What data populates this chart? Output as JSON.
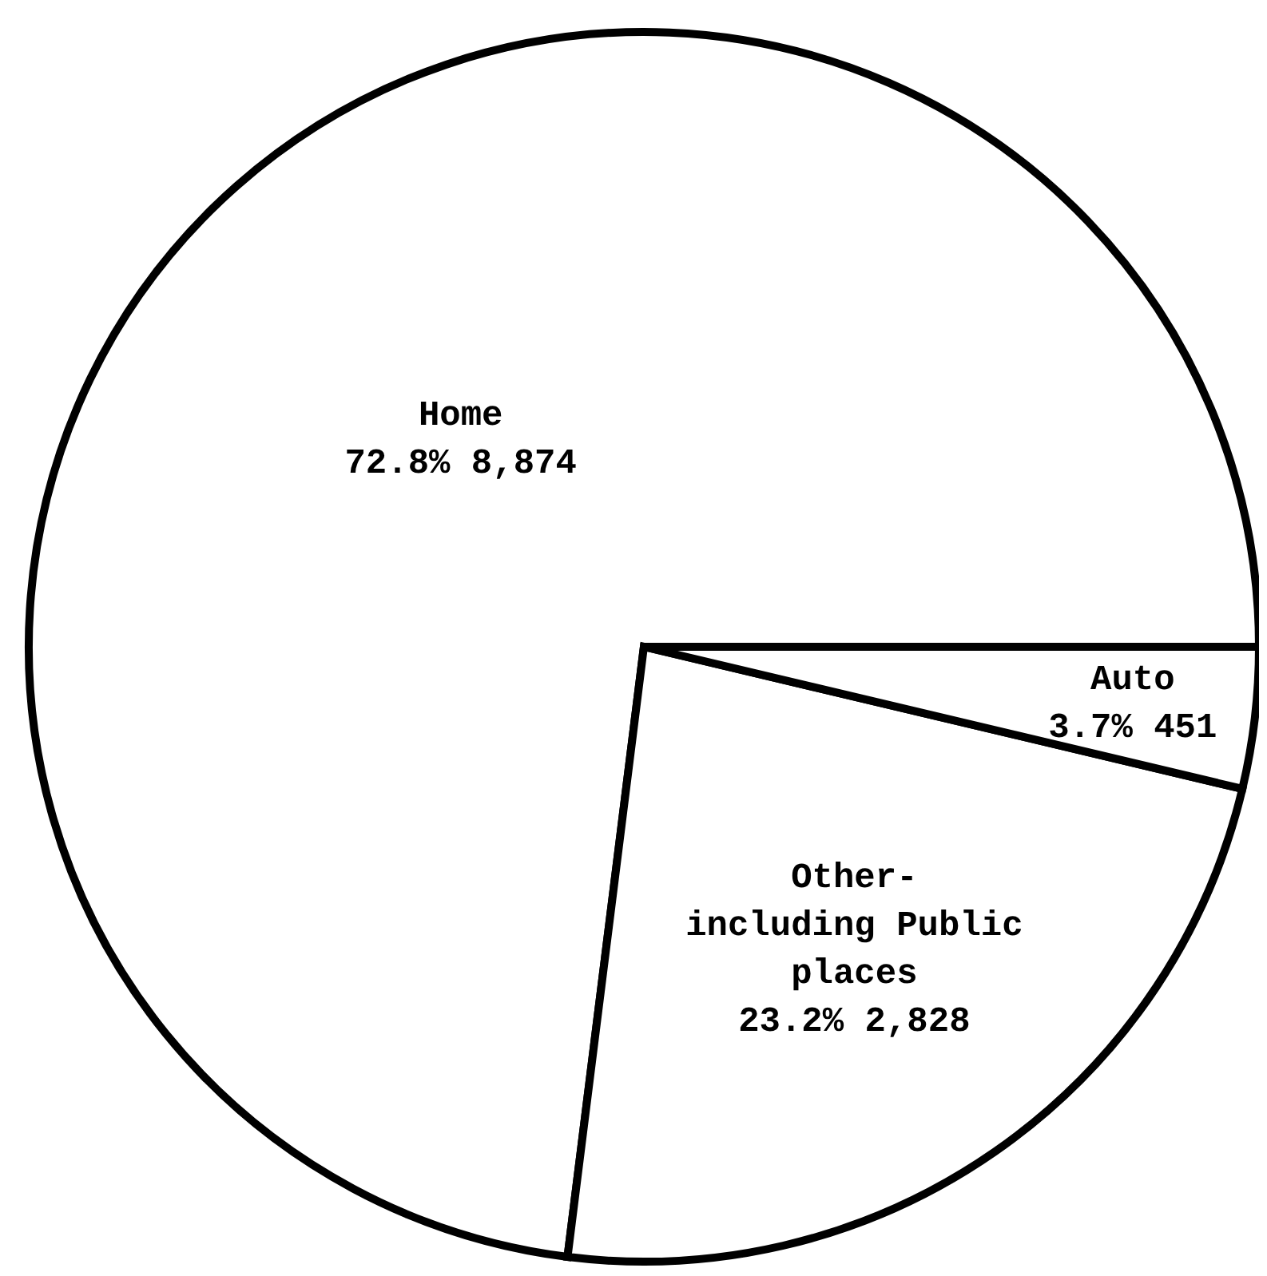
{
  "chart_data": {
    "type": "pie",
    "categories": [
      "Home",
      "Other-including Public places",
      "Auto"
    ],
    "values": [
      72.8,
      23.2,
      3.7
    ],
    "value_labels": [
      "72.8%",
      "23.2%",
      "3.7%"
    ],
    "annotations": [
      "8,874",
      "2,828",
      "451"
    ],
    "colors": [
      "#ffffff",
      "#ffffff",
      "#ffffff"
    ],
    "legend": false
  }
}
